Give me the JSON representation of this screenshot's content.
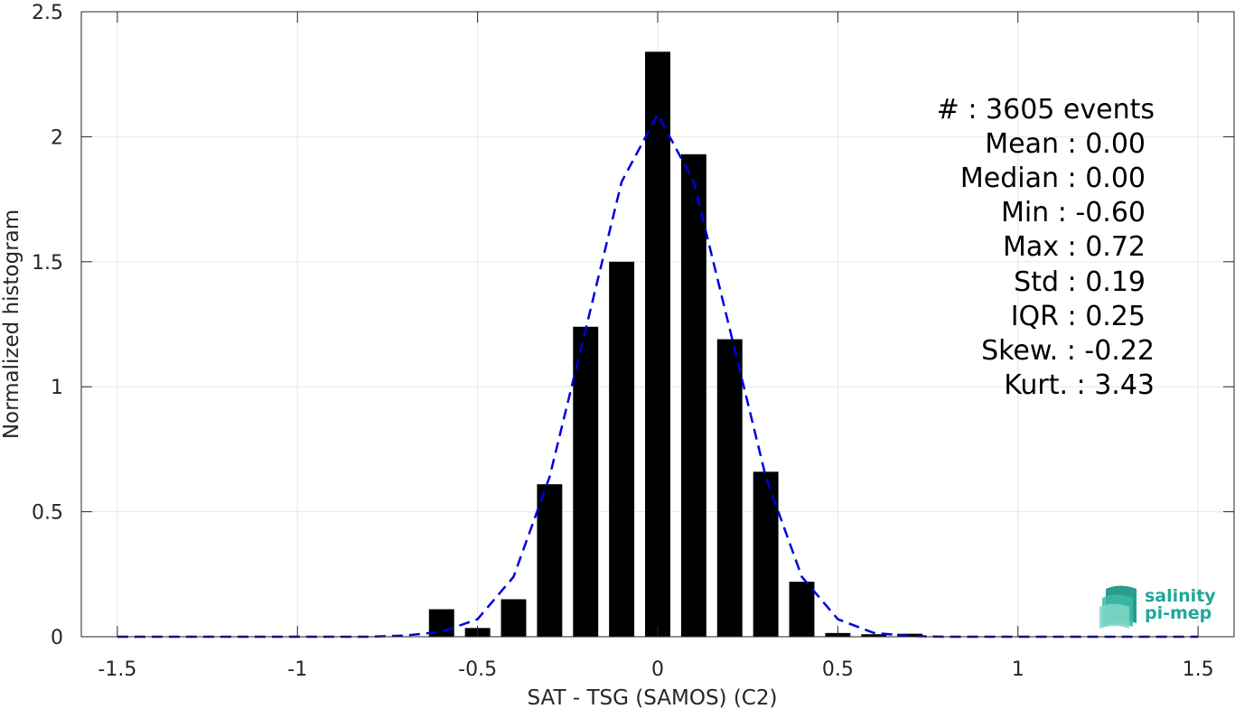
{
  "chart_data": {
    "type": "bar",
    "xlabel": "SAT - TSG (SAMOS) (C2)",
    "ylabel": "Normalized histogram",
    "xlim": [
      -1.6,
      1.6
    ],
    "ylim": [
      0,
      2.5
    ],
    "grid": true,
    "x_ticks": [
      -1.5,
      -1,
      -0.5,
      0,
      0.5,
      1,
      1.5
    ],
    "x_tick_labels": [
      "-1.5",
      "-1",
      "-0.5",
      "0",
      "0.5",
      "1",
      "1.5"
    ],
    "y_ticks": [
      0,
      0.5,
      1,
      1.5,
      2,
      2.5
    ],
    "y_tick_labels": [
      "0",
      "0.5",
      "1",
      "1.5",
      "2",
      "2.5"
    ],
    "bar_width": 0.07,
    "series": [
      {
        "type": "bar",
        "color": "#000000",
        "x": [
          -0.6,
          -0.5,
          -0.4,
          -0.3,
          -0.2,
          -0.1,
          0.0,
          0.1,
          0.2,
          0.3,
          0.4,
          0.5,
          0.6,
          0.7
        ],
        "values": [
          0.11,
          0.035,
          0.15,
          0.61,
          1.24,
          1.5,
          2.34,
          1.93,
          1.19,
          0.66,
          0.22,
          0.015,
          0.01,
          0.012
        ]
      },
      {
        "type": "line",
        "style": "dashed",
        "color": "#0000dd",
        "x": [
          -1.5,
          -1.4,
          -1.3,
          -1.2,
          -1.1,
          -1.0,
          -0.9,
          -0.8,
          -0.7,
          -0.6,
          -0.5,
          -0.4,
          -0.3,
          -0.2,
          -0.1,
          0.0,
          0.1,
          0.2,
          0.3,
          0.4,
          0.5,
          0.6,
          0.7,
          0.8,
          0.9,
          1.0,
          1.1,
          1.2,
          1.3,
          1.4,
          1.5
        ],
        "values": [
          0,
          0,
          0,
          0,
          0,
          0,
          0,
          0,
          0.005,
          0.02,
          0.07,
          0.24,
          0.64,
          1.23,
          1.82,
          2.09,
          1.82,
          1.23,
          0.64,
          0.24,
          0.07,
          0.015,
          0.003,
          0,
          0,
          0,
          0,
          0,
          0,
          0,
          0
        ]
      }
    ],
    "stats": [
      "#  : 3605 events",
      "Mean : 0.00",
      "Median : 0.00",
      "Min : -0.60",
      "Max : 0.72",
      "Std : 0.19",
      "IQR : 0.25",
      "Skew. : -0.22",
      "Kurt. : 3.43"
    ]
  },
  "logo": {
    "line1": "salinity",
    "line2": "pi-mep",
    "color": "#1fa89a"
  }
}
